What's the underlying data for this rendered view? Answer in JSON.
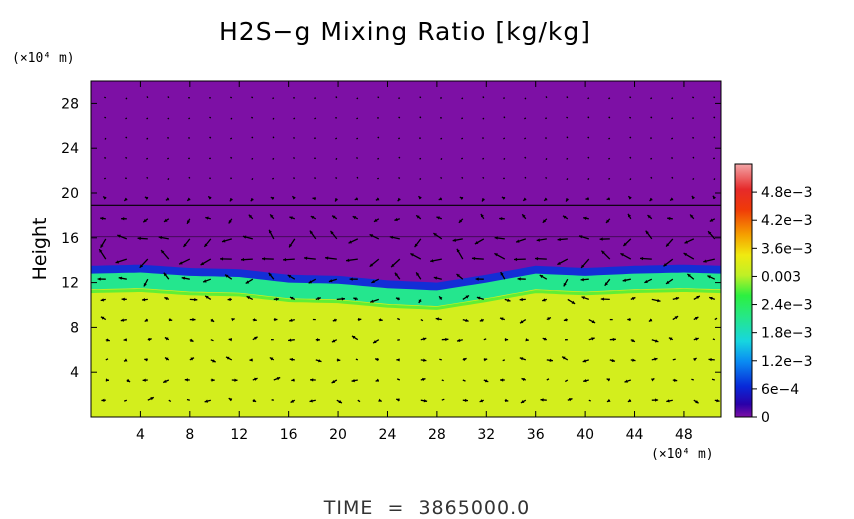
{
  "chart_data": {
    "type": "heatmap",
    "title": "H2S−g Mixing Ratio [kg/kg]",
    "ylabel": "Height",
    "x_unit_label": "(×10⁴ m)",
    "y_unit_label": "(×10⁴ m)",
    "x_ticks": [
      4,
      8,
      12,
      16,
      20,
      24,
      28,
      32,
      36,
      40,
      44,
      48
    ],
    "y_ticks": [
      4,
      8,
      12,
      16,
      20,
      24,
      28
    ],
    "xlim": [
      0,
      51
    ],
    "ylim": [
      0,
      30
    ],
    "colorbar": {
      "ticks": [
        {
          "value": 0,
          "label": "0"
        },
        {
          "value": 0.0006,
          "label": "6e−4"
        },
        {
          "value": 0.0012,
          "label": "1.2e−3"
        },
        {
          "value": 0.0018,
          "label": "1.8e−3"
        },
        {
          "value": 0.0024,
          "label": "2.4e−3"
        },
        {
          "value": 0.003,
          "label": "0.003"
        },
        {
          "value": 0.0036,
          "label": "3.6e−3"
        },
        {
          "value": 0.0042,
          "label": "4.2e−3"
        },
        {
          "value": 0.0048,
          "label": "4.8e−3"
        }
      ],
      "max": 0.0054
    },
    "field": {
      "upper_layer_value": 0,
      "lower_layer_value": 0.0032,
      "interface_height": [
        {
          "x": 0,
          "y": 12.8
        },
        {
          "x": 4,
          "y": 12.9
        },
        {
          "x": 8,
          "y": 12.6
        },
        {
          "x": 12,
          "y": 12.5
        },
        {
          "x": 16,
          "y": 12.0
        },
        {
          "x": 20,
          "y": 11.9
        },
        {
          "x": 24,
          "y": 11.5
        },
        {
          "x": 28,
          "y": 11.3
        },
        {
          "x": 32,
          "y": 12.0
        },
        {
          "x": 36,
          "y": 12.8
        },
        {
          "x": 40,
          "y": 12.6
        },
        {
          "x": 44,
          "y": 12.8
        },
        {
          "x": 48,
          "y": 12.9
        },
        {
          "x": 51,
          "y": 12.8
        }
      ]
    },
    "annotation": "TIME  =  3865000.0"
  }
}
